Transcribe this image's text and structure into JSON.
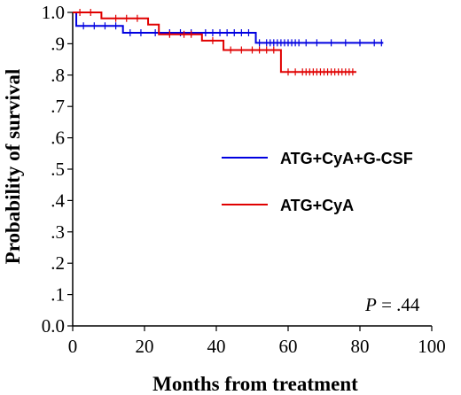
{
  "chart_data": {
    "type": "line",
    "title": "",
    "xlabel": "Months from treatment",
    "ylabel": "Probability of survival",
    "xlim": [
      0,
      100
    ],
    "ylim": [
      0.0,
      1.0
    ],
    "x_ticks": [
      0,
      20,
      40,
      60,
      80,
      100
    ],
    "x_tick_labels": [
      "0",
      "20",
      "40",
      "60",
      "80",
      "100"
    ],
    "y_ticks": [
      0.0,
      0.1,
      0.2,
      0.3,
      0.4,
      0.5,
      0.6,
      0.7,
      0.8,
      0.9,
      1.0
    ],
    "y_tick_labels": [
      "0.0",
      ".1",
      ".2",
      ".3",
      ".4",
      ".5",
      ".6",
      ".7",
      ".8",
      ".9",
      "1.0"
    ],
    "grid": false,
    "legend_position": "right-middle",
    "series": [
      {
        "name": "ATG+CyA+G-CSF",
        "color": "#0000e0",
        "steps": [
          [
            0,
            1.0
          ],
          [
            1,
            0.957
          ],
          [
            14,
            0.935
          ],
          [
            51,
            0.903
          ],
          [
            86.5,
            0.903
          ]
        ],
        "censored": [
          3,
          6,
          9,
          12,
          16,
          19,
          23,
          27,
          30,
          33,
          37,
          39,
          41,
          43,
          45,
          47,
          49,
          52,
          54,
          55,
          56,
          57,
          58,
          59,
          60,
          61,
          62,
          63,
          65,
          68,
          72,
          76,
          80,
          84,
          86
        ]
      },
      {
        "name": "ATG+CyA",
        "color": "#e00000",
        "steps": [
          [
            0,
            1.0
          ],
          [
            8,
            0.981
          ],
          [
            21,
            0.961
          ],
          [
            24,
            0.93
          ],
          [
            36,
            0.91
          ],
          [
            42,
            0.88
          ],
          [
            58,
            0.81
          ],
          [
            79,
            0.81
          ]
        ],
        "censored": [
          2,
          5,
          12,
          15,
          18,
          27,
          31,
          33,
          39,
          44,
          47,
          50,
          52,
          54,
          56,
          60,
          62,
          64,
          65,
          66,
          67,
          68,
          69,
          70,
          71,
          72,
          73,
          74,
          75,
          76,
          77,
          78
        ]
      }
    ],
    "annotation": {
      "p_symbol": "P",
      "p_rest": " = .44"
    }
  }
}
